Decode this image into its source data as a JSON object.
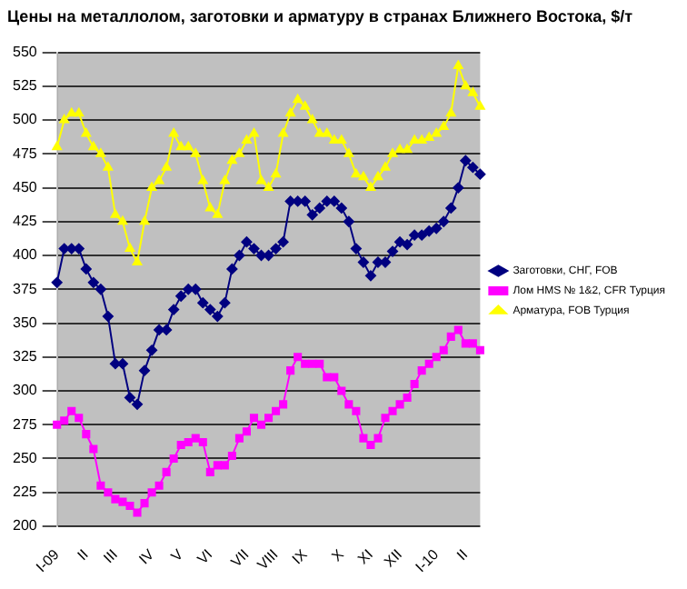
{
  "chart_data": {
    "type": "line",
    "title": "Цены на металлолом, заготовки и арматуру в странах Ближнего Востока, $/т",
    "categories": [
      "I-09",
      null,
      null,
      null,
      "II",
      null,
      null,
      null,
      "III",
      null,
      null,
      null,
      null,
      "IV",
      null,
      null,
      null,
      "V",
      null,
      null,
      null,
      "VI",
      null,
      null,
      null,
      null,
      "VII",
      null,
      null,
      null,
      "VIII",
      null,
      null,
      null,
      "IX",
      null,
      null,
      null,
      null,
      "X",
      null,
      null,
      null,
      "XI",
      null,
      null,
      null,
      "XII",
      null,
      null,
      null,
      null,
      "I-10",
      null,
      null,
      null,
      "II",
      null,
      null
    ],
    "series": [
      {
        "name": "Заготовки, СНГ, FOB",
        "color": "#000080",
        "marker": "diamond",
        "values": [
          380,
          405,
          405,
          405,
          390,
          380,
          375,
          355,
          320,
          320,
          295,
          290,
          315,
          330,
          345,
          345,
          360,
          370,
          375,
          375,
          365,
          360,
          355,
          365,
          390,
          400,
          410,
          405,
          400,
          400,
          405,
          410,
          440,
          440,
          440,
          430,
          435,
          440,
          440,
          435,
          425,
          405,
          395,
          385,
          395,
          395,
          403,
          410,
          408,
          415,
          415,
          418,
          420,
          425,
          435,
          450,
          470,
          465,
          460
        ]
      },
      {
        "name": "Лом HMS № 1&2, CFR Турция",
        "color": "#ff00ff",
        "marker": "square",
        "values": [
          275,
          278,
          285,
          280,
          268,
          257,
          230,
          225,
          220,
          218,
          215,
          210,
          217,
          225,
          230,
          240,
          250,
          260,
          262,
          265,
          262,
          240,
          245,
          245,
          252,
          265,
          270,
          280,
          275,
          280,
          285,
          290,
          315,
          325,
          320,
          320,
          320,
          310,
          310,
          300,
          290,
          285,
          265,
          260,
          265,
          280,
          285,
          290,
          295,
          305,
          315,
          320,
          325,
          330,
          340,
          345,
          335,
          335,
          330
        ]
      },
      {
        "name": "Арматура, FOB Турция",
        "color": "#ffff00",
        "marker": "triangle",
        "values": [
          480,
          500,
          505,
          505,
          490,
          480,
          475,
          465,
          430,
          425,
          405,
          395,
          425,
          450,
          455,
          465,
          490,
          480,
          480,
          475,
          455,
          435,
          430,
          455,
          470,
          475,
          485,
          490,
          455,
          450,
          460,
          490,
          505,
          515,
          510,
          500,
          490,
          490,
          485,
          485,
          475,
          460,
          458,
          450,
          458,
          465,
          475,
          478,
          478,
          485,
          485,
          487,
          490,
          495,
          505,
          540,
          525,
          520,
          510
        ]
      }
    ],
    "ylim": [
      200,
      550
    ],
    "yticks": [
      200,
      225,
      250,
      275,
      300,
      325,
      350,
      375,
      400,
      425,
      450,
      475,
      500,
      525,
      550
    ],
    "grid": "y",
    "legend": "right"
  }
}
